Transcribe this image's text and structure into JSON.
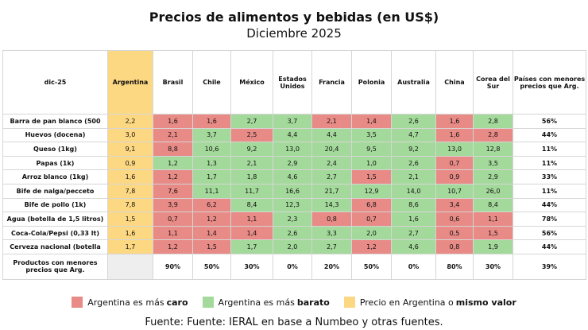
{
  "header": {
    "title": "Precios de alimentos y bebidas (en US$)",
    "subtitle": "Diciembre 2025"
  },
  "table": {
    "columns": [
      "dic-25",
      "Argentina",
      "Brasil",
      "Chile",
      "México",
      "Estados Unidos",
      "Francia",
      "Polonia",
      "Australia",
      "China",
      "Corea del Sur",
      "Países con menores precios que Arg."
    ],
    "rows": [
      {
        "label": "Barra de pan blanco (500",
        "argentina": "2,2",
        "values": [
          "1,6",
          "1,6",
          "2,7",
          "3,7",
          "2,1",
          "1,4",
          "2,6",
          "1,6",
          "2,8"
        ],
        "share": "56%"
      },
      {
        "label": "Huevos (docena)",
        "argentina": "3,0",
        "values": [
          "2,1",
          "3,7",
          "2,5",
          "4,4",
          "4,4",
          "3,5",
          "4,7",
          "1,6",
          "2,8"
        ],
        "share": "44%"
      },
      {
        "label": "Queso (1kg)",
        "argentina": "9,1",
        "values": [
          "8,8",
          "10,6",
          "9,2",
          "13,0",
          "20,4",
          "9,5",
          "9,2",
          "13,0",
          "12,8"
        ],
        "share": "11%"
      },
      {
        "label": "Papas (1k)",
        "argentina": "0,9",
        "values": [
          "1,2",
          "1,3",
          "2,1",
          "2,9",
          "2,4",
          "1,0",
          "2,6",
          "0,7",
          "3,5"
        ],
        "share": "11%"
      },
      {
        "label": "Arroz blanco (1kg)",
        "argentina": "1,6",
        "values": [
          "1,2",
          "1,7",
          "1,8",
          "4,6",
          "2,7",
          "1,5",
          "2,1",
          "0,9",
          "2,9"
        ],
        "share": "33%"
      },
      {
        "label": "Bife de nalga/pecceto",
        "argentina": "7,8",
        "values": [
          "7,6",
          "11,1",
          "11,7",
          "16,6",
          "21,7",
          "12,9",
          "14,0",
          "10,7",
          "26,0"
        ],
        "share": "11%"
      },
      {
        "label": "Bife de pollo (1k)",
        "argentina": "7,8",
        "values": [
          "3,9",
          "6,2",
          "8,4",
          "12,3",
          "14,3",
          "6,8",
          "8,6",
          "3,4",
          "8,4"
        ],
        "share": "44%"
      },
      {
        "label": "Agua (botella de 1,5 litros)",
        "argentina": "1,5",
        "values": [
          "0,7",
          "1,2",
          "1,1",
          "2,3",
          "0,8",
          "0,7",
          "1,6",
          "0,6",
          "1,1"
        ],
        "share": "78%"
      },
      {
        "label": "Coca-Cola/Pepsi (0,33 lt)",
        "argentina": "1,6",
        "values": [
          "1,1",
          "1,4",
          "1,4",
          "2,6",
          "3,3",
          "2,0",
          "2,7",
          "0,5",
          "1,5"
        ],
        "share": "56%"
      },
      {
        "label": "Cerveza nacional (botella",
        "argentina": "1,7",
        "values": [
          "1,2",
          "1,5",
          "1,7",
          "2,0",
          "2,7",
          "1,2",
          "4,6",
          "0,8",
          "1,9"
        ],
        "share": "44%"
      }
    ],
    "footer": {
      "label": "Productos con menores precios que Arg.",
      "values": [
        "90%",
        "50%",
        "30%",
        "0%",
        "20%",
        "50%",
        "0%",
        "80%",
        "30%"
      ],
      "share": "39%"
    }
  },
  "legend": [
    {
      "text": "Argentina es más",
      "bold": "caro",
      "color": "#e88a86"
    },
    {
      "text": "Argentina es más",
      "bold": "barato",
      "color": "#a3d99a"
    },
    {
      "text": "Precio en Argentina o",
      "bold": "mismo valor",
      "color": "#fdd882"
    }
  ],
  "source": "Fuente: Fuente: IERAL en base a Numbeo y otras fuentes."
}
